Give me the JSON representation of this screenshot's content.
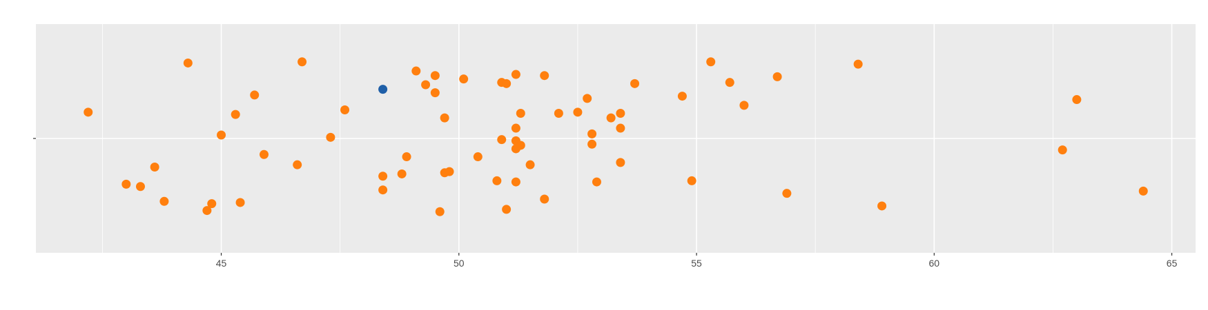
{
  "chart_data": {
    "type": "scatter",
    "title": "",
    "xlabel": "",
    "ylabel": "",
    "xlim": [
      41.1,
      65.5
    ],
    "ylim": [
      -1,
      1
    ],
    "x_ticks": [
      45,
      50,
      55,
      60,
      65
    ],
    "x_tick_labels": [
      "45",
      "50",
      "55",
      "60",
      "65"
    ],
    "grid": true,
    "legend": "none",
    "colors": {
      "panel": "#ebebeb",
      "grid": "#ffffff",
      "series": "#ff7f0e",
      "highlight": "#1f5fa8"
    },
    "series": [
      {
        "name": "",
        "color": "#ff7f0e",
        "points": [
          [
            42.2,
            0.23
          ],
          [
            44.3,
            0.66
          ],
          [
            46.7,
            0.67
          ],
          [
            45.7,
            0.38
          ],
          [
            45.3,
            0.21
          ],
          [
            45.0,
            0.03
          ],
          [
            47.3,
            0.01
          ],
          [
            47.6,
            0.25
          ],
          [
            43.0,
            -0.4
          ],
          [
            43.3,
            -0.42
          ],
          [
            43.6,
            -0.25
          ],
          [
            43.8,
            -0.55
          ],
          [
            44.7,
            -0.63
          ],
          [
            44.8,
            -0.57
          ],
          [
            45.4,
            -0.56
          ],
          [
            45.9,
            -0.14
          ],
          [
            46.6,
            -0.23
          ],
          [
            49.1,
            0.59
          ],
          [
            49.3,
            0.47
          ],
          [
            49.5,
            0.55
          ],
          [
            49.5,
            0.4
          ],
          [
            49.7,
            0.18
          ],
          [
            50.1,
            0.52
          ],
          [
            48.4,
            -0.45
          ],
          [
            48.4,
            -0.33
          ],
          [
            48.8,
            -0.31
          ],
          [
            48.9,
            -0.16
          ],
          [
            49.6,
            -0.64
          ],
          [
            49.7,
            -0.3
          ],
          [
            49.8,
            -0.29
          ],
          [
            50.4,
            -0.16
          ],
          [
            50.8,
            -0.37
          ],
          [
            50.9,
            0.49
          ],
          [
            51.0,
            0.48
          ],
          [
            51.2,
            0.56
          ],
          [
            51.3,
            0.22
          ],
          [
            51.2,
            0.09
          ],
          [
            50.9,
            -0.01
          ],
          [
            51.2,
            -0.02
          ],
          [
            51.3,
            -0.06
          ],
          [
            51.2,
            -0.09
          ],
          [
            51.5,
            -0.23
          ],
          [
            51.2,
            -0.38
          ],
          [
            51.0,
            -0.62
          ],
          [
            51.8,
            0.55
          ],
          [
            51.8,
            -0.53
          ],
          [
            52.1,
            0.22
          ],
          [
            52.5,
            0.23
          ],
          [
            52.7,
            0.35
          ],
          [
            52.8,
            0.04
          ],
          [
            52.8,
            -0.05
          ],
          [
            52.9,
            -0.38
          ],
          [
            53.2,
            0.18
          ],
          [
            53.4,
            0.22
          ],
          [
            53.4,
            0.09
          ],
          [
            53.4,
            -0.21
          ],
          [
            53.7,
            0.48
          ],
          [
            54.7,
            0.37
          ],
          [
            54.9,
            -0.37
          ],
          [
            55.3,
            0.67
          ],
          [
            55.7,
            0.49
          ],
          [
            56.0,
            0.29
          ],
          [
            56.7,
            0.54
          ],
          [
            56.9,
            -0.48
          ],
          [
            58.4,
            0.65
          ],
          [
            58.9,
            -0.59
          ],
          [
            62.7,
            -0.1
          ],
          [
            63.0,
            0.34
          ],
          [
            64.4,
            -0.46
          ]
        ]
      },
      {
        "name": "",
        "color": "#1f5fa8",
        "points": [
          [
            48.4,
            0.43
          ]
        ]
      }
    ]
  }
}
